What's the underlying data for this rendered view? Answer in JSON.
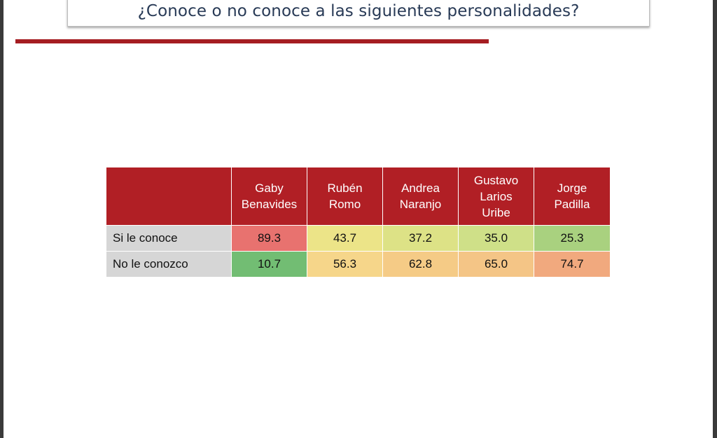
{
  "title": "¿Conoce o no conoce a las siguientes personalidades?",
  "chart_data": {
    "type": "table",
    "title": "¿Conoce o no conoce a las siguientes personalidades?",
    "columns": [
      "",
      "Gaby\nBenavides",
      "Rubén\nRomo",
      "Andrea\nNaranjo",
      "Gustavo\nLarios\nUribe",
      "Jorge\nPadilla"
    ],
    "rows": [
      {
        "label": "Si le conoce",
        "values": [
          "89.3",
          "43.7",
          "37.2",
          "35.0",
          "25.3"
        ],
        "colors": [
          "#e8726f",
          "#ece488",
          "#dde286",
          "#cfe088",
          "#a9d17f"
        ]
      },
      {
        "label": "No le conozco",
        "values": [
          "10.7",
          "56.3",
          "62.8",
          "65.0",
          "74.7"
        ],
        "colors": [
          "#72bd73",
          "#f6d68a",
          "#f5cb86",
          "#f4c586",
          "#f1a97e"
        ]
      }
    ],
    "colors": {
      "header_background": "#b11f25",
      "label_background": "#d6d6d6",
      "title_color": "#283a56",
      "rule_color": "#a51d22"
    }
  }
}
